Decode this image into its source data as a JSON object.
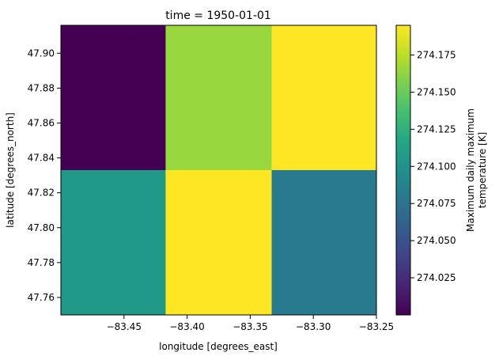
{
  "chart_data": {
    "type": "heatmap",
    "title": "time = 1950-01-01",
    "xlabel": "longitude [degrees_east]",
    "ylabel": "latitude [degrees_north]",
    "colorbar_label": [
      "Maximum daily maximum",
      "temperature [K]"
    ],
    "colormap": "viridis",
    "xlim": [
      -83.5,
      -83.25
    ],
    "ylim": [
      47.75,
      47.916
    ],
    "x_edges": [
      -83.5,
      -83.417,
      -83.333,
      -83.25
    ],
    "y_edges": [
      47.75,
      47.833,
      47.916
    ],
    "x_ticks": [
      -83.45,
      -83.4,
      -83.35,
      -83.3,
      -83.25
    ],
    "x_tick_labels": [
      "−83.45",
      "−83.40",
      "−83.35",
      "−83.30",
      "−83.25"
    ],
    "y_ticks": [
      47.76,
      47.78,
      47.8,
      47.82,
      47.84,
      47.86,
      47.88,
      47.9
    ],
    "y_tick_labels": [
      "47.76",
      "47.78",
      "47.80",
      "47.82",
      "47.84",
      "47.86",
      "47.88",
      "47.90"
    ],
    "values": [
      [
        274.105,
        274.195,
        274.08
      ],
      [
        274.0,
        274.165,
        274.195
      ]
    ],
    "vmin": 274.0,
    "vmax": 274.195,
    "colorbar_ticks": [
      274.025,
      274.05,
      274.075,
      274.1,
      274.125,
      274.15,
      274.175
    ],
    "colorbar_tick_labels": [
      "274.025",
      "274.050",
      "274.075",
      "274.100",
      "274.125",
      "274.150",
      "274.175"
    ]
  }
}
